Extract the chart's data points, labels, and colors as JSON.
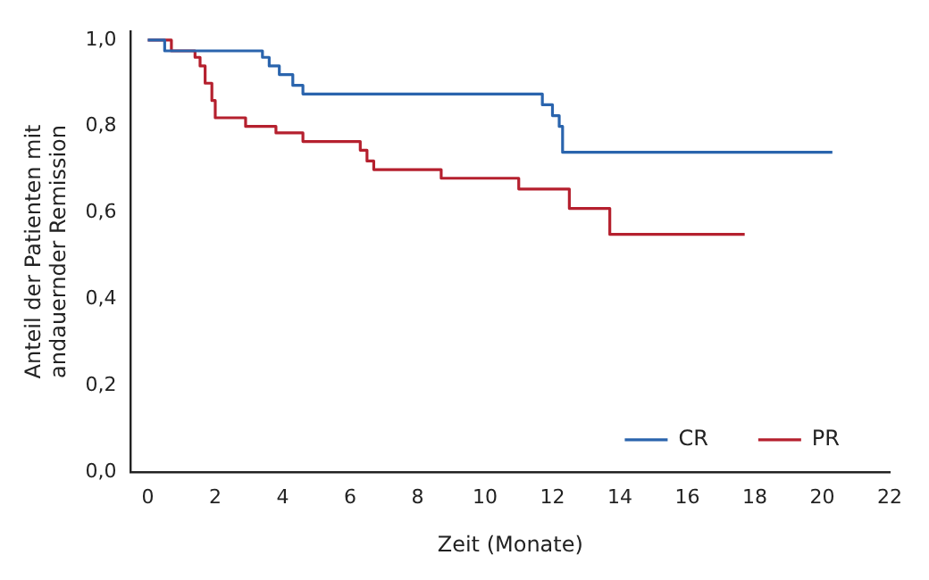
{
  "chart_data": {
    "type": "step",
    "xlabel": "Zeit (Monate)",
    "ylabel": "Anteil der Patienten mit andauernder Remission",
    "series": [
      {
        "name": "CR",
        "color": "#2a64ad",
        "x": [
          0,
          0.5,
          3.4,
          3.6,
          3.9,
          4.3,
          4.6,
          11.7,
          12.0,
          12.2,
          12.3,
          20.3
        ],
        "values": [
          1.0,
          0.975,
          0.96,
          0.94,
          0.92,
          0.895,
          0.875,
          0.85,
          0.825,
          0.8,
          0.74,
          0.74
        ]
      },
      {
        "name": "PR",
        "color": "#b5202e",
        "x": [
          0,
          0.7,
          1.4,
          1.55,
          1.7,
          1.9,
          2.0,
          2.9,
          3.8,
          4.6,
          6.3,
          6.5,
          6.7,
          8.7,
          11.0,
          12.5,
          13.7,
          17.7
        ],
        "values": [
          1.0,
          0.975,
          0.96,
          0.94,
          0.9,
          0.86,
          0.82,
          0.8,
          0.785,
          0.765,
          0.745,
          0.72,
          0.7,
          0.68,
          0.655,
          0.61,
          0.55,
          0.55
        ]
      }
    ],
    "xlim": [
      -0.5,
      22
    ],
    "xticks": [
      0,
      2,
      4,
      6,
      8,
      10,
      12,
      14,
      16,
      18,
      20,
      22
    ],
    "ylim": [
      0,
      1.02
    ],
    "yticks": [
      {
        "value": 0,
        "label": "0,0"
      },
      {
        "value": 0.2,
        "label": "0,2"
      },
      {
        "value": 0.4,
        "label": "0,4"
      },
      {
        "value": 0.6,
        "label": "0,6"
      },
      {
        "value": 0.8,
        "label": "0,8"
      },
      {
        "value": 1,
        "label": "1,0"
      }
    ],
    "grid": false,
    "legend": "bottom right",
    "marker": "none",
    "line_style": "solid"
  }
}
